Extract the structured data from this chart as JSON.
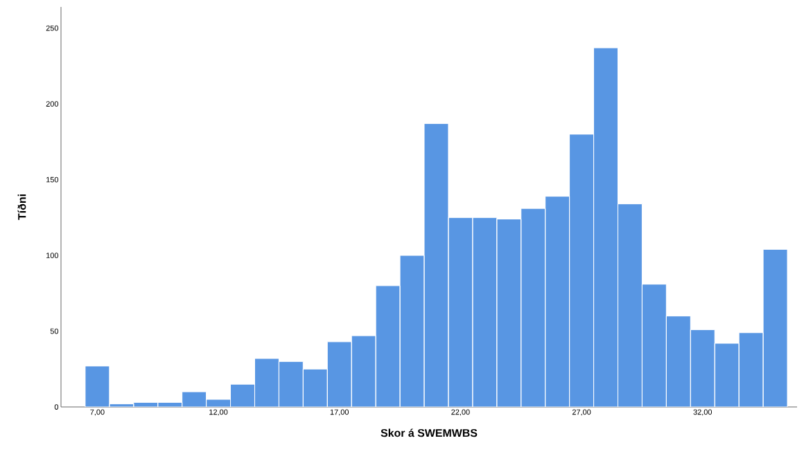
{
  "chart_data": {
    "type": "histogram",
    "xlabel": "Skor á SWEMWBS",
    "ylabel": "Tíðni",
    "color": "#5896e3",
    "bins": [
      6.5,
      7.5,
      8.5,
      9.5,
      10.5,
      11.5,
      12.5,
      13.5,
      14.5,
      15.5,
      16.5,
      17.5,
      18.5,
      19.5,
      20.5,
      21.5,
      22.5,
      23.5,
      24.5,
      25.5,
      26.5,
      27.5,
      28.5,
      29.5,
      30.5,
      31.5,
      32.5,
      33.5,
      34.5,
      35.5
    ],
    "values": [
      27,
      2,
      3,
      3,
      10,
      5,
      15,
      32,
      30,
      25,
      43,
      47,
      80,
      100,
      187,
      125,
      125,
      124,
      131,
      139,
      180,
      237,
      134,
      81,
      60,
      51,
      42,
      49,
      104
    ],
    "xlim": [
      5.5,
      35.9
    ],
    "ylim": [
      0,
      264
    ],
    "xticks": [
      {
        "value": 7,
        "label": "7,00"
      },
      {
        "value": 12,
        "label": "12,00"
      },
      {
        "value": 17,
        "label": "17,00"
      },
      {
        "value": 22,
        "label": "22,00"
      },
      {
        "value": 27,
        "label": "27,00"
      },
      {
        "value": 32,
        "label": "32,00"
      }
    ],
    "yticks": [
      0,
      50,
      100,
      150,
      200,
      250
    ]
  }
}
